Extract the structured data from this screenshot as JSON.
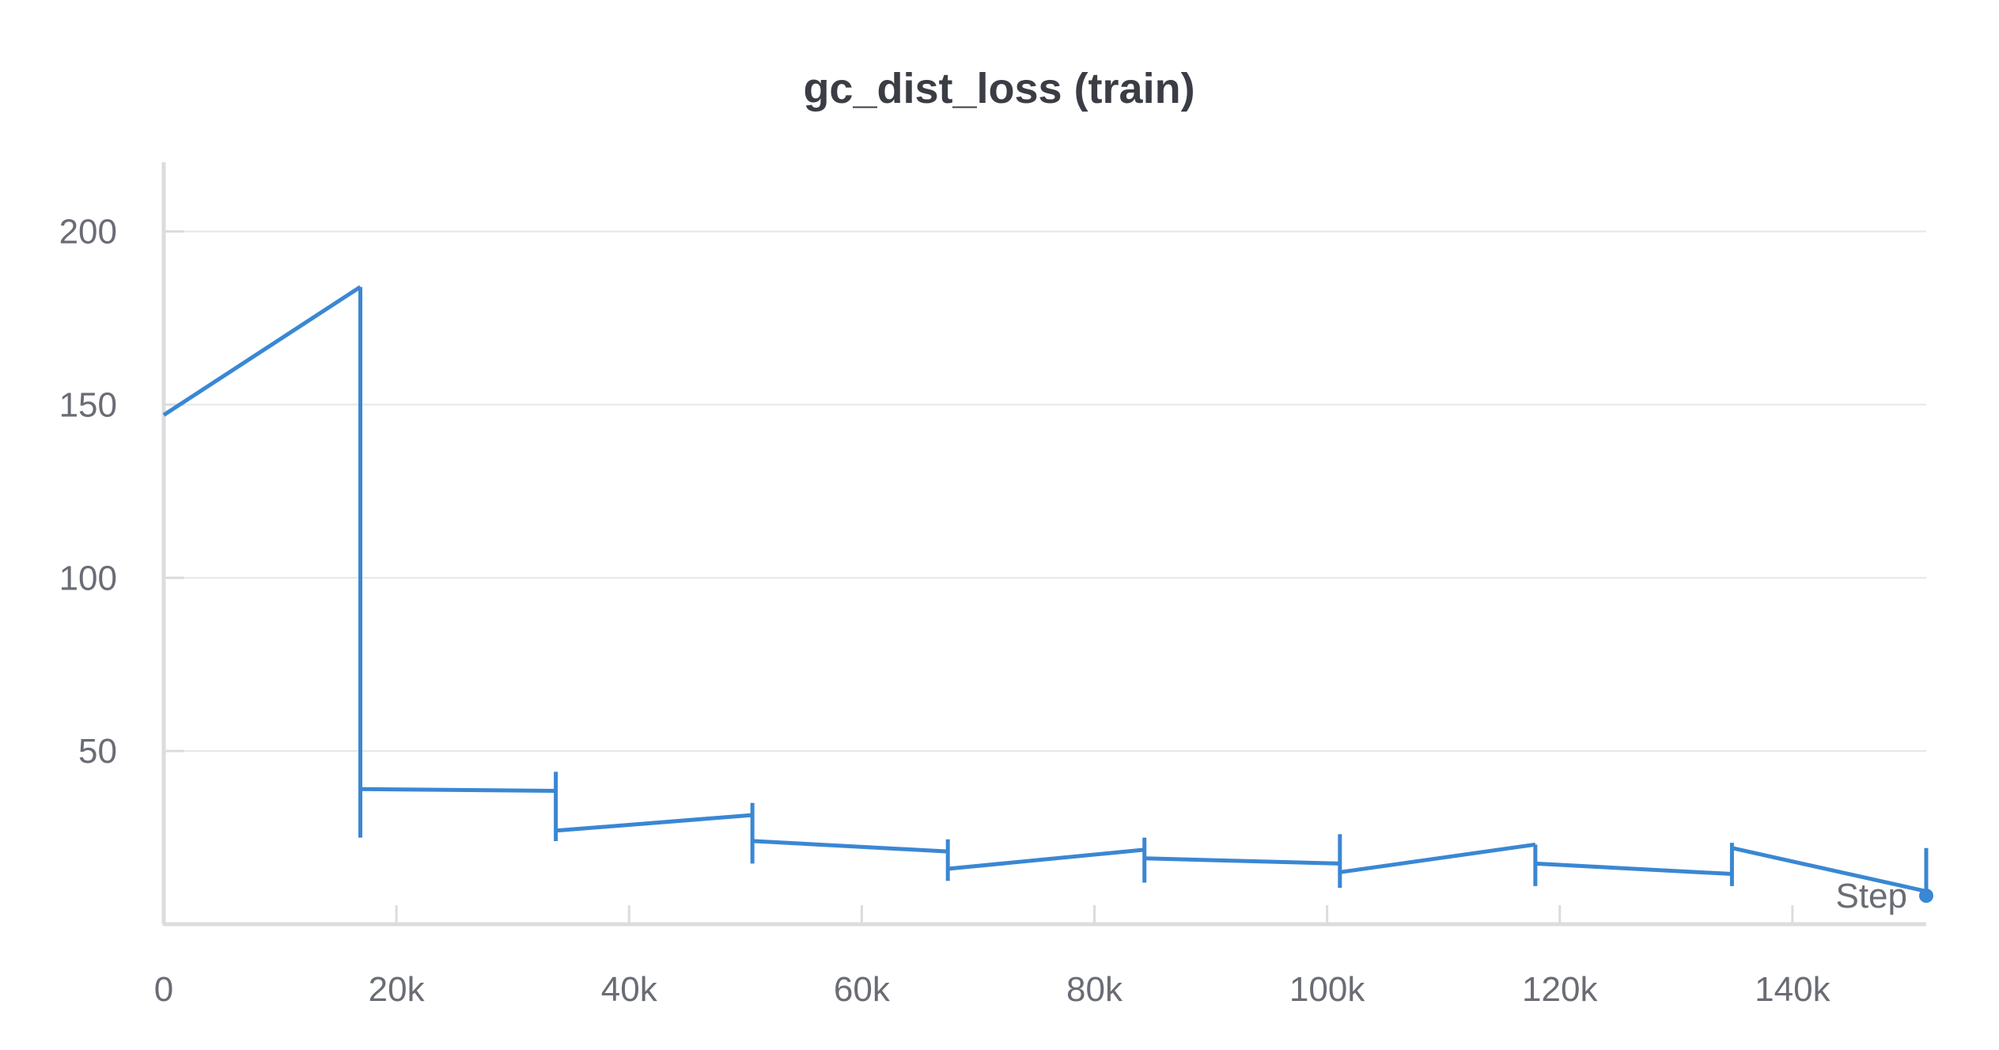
{
  "chart_data": {
    "type": "line",
    "title": "gc_dist_loss (train)",
    "xlabel": "Step",
    "ylabel": "",
    "xlim": [
      0,
      151500
    ],
    "ylim": [
      0,
      220
    ],
    "x_ticks": [
      0,
      20000,
      40000,
      60000,
      80000,
      100000,
      120000,
      140000
    ],
    "x_tick_labels": [
      "0",
      "20k",
      "40k",
      "60k",
      "80k",
      "100k",
      "120k",
      "140k"
    ],
    "y_ticks": [
      50,
      100,
      150,
      200
    ],
    "y_tick_labels": [
      "50",
      "100",
      "150",
      "200"
    ],
    "grid": true,
    "legend": "bottom-right",
    "series": [
      {
        "color": "#3a87d3",
        "segments": [
          {
            "x": [
              0,
              16900
            ],
            "y": [
              147,
              184
            ]
          },
          {
            "x": [
              16900,
              33700
            ],
            "y": [
              39,
              38.5
            ]
          },
          {
            "x": [
              33700,
              50600
            ],
            "y": [
              27,
              31.5
            ]
          },
          {
            "x": [
              50600,
              67400
            ],
            "y": [
              24,
              21
            ]
          },
          {
            "x": [
              67400,
              84300
            ],
            "y": [
              16,
              21.5
            ]
          },
          {
            "x": [
              84300,
              101100
            ],
            "y": [
              19,
              17.5
            ]
          },
          {
            "x": [
              101100,
              117900
            ],
            "y": [
              15,
              23
            ]
          },
          {
            "x": [
              117900,
              134800
            ],
            "y": [
              17.5,
              14.5
            ]
          },
          {
            "x": [
              134800,
              151500
            ],
            "y": [
              22,
              9.5
            ]
          }
        ],
        "break_markers": [
          {
            "x": 16900,
            "y": [
              25,
              184
            ]
          },
          {
            "x": 33700,
            "y": [
              24,
              44
            ]
          },
          {
            "x": 50600,
            "y": [
              17.5,
              35
            ]
          },
          {
            "x": 67400,
            "y": [
              12.5,
              24.5
            ]
          },
          {
            "x": 84300,
            "y": [
              12,
              25
            ]
          },
          {
            "x": 101100,
            "y": [
              10.5,
              26
            ]
          },
          {
            "x": 117900,
            "y": [
              11,
              23
            ]
          },
          {
            "x": 134800,
            "y": [
              11,
              23.5
            ]
          },
          {
            "x": 151500,
            "y": [
              9,
              22
            ]
          }
        ]
      }
    ]
  }
}
